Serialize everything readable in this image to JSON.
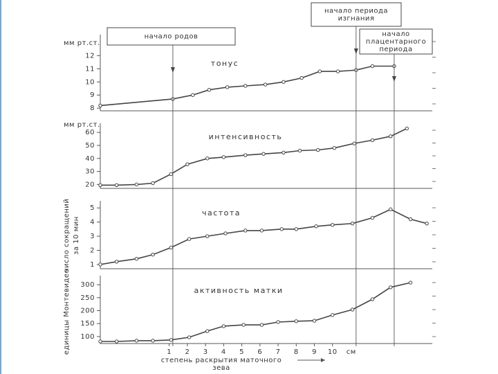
{
  "chart_data": [
    {
      "type": "line",
      "title": "тонус",
      "ylabel": [
        "мм рт.ст."
      ],
      "color": "#444444",
      "x": [
        -2.8,
        1.2,
        2.3,
        3.2,
        4.2,
        5.2,
        6.3,
        7.3,
        8.3,
        9.3,
        10.3,
        11.3,
        12.2,
        13.4
      ],
      "values": [
        8.2,
        8.7,
        9.0,
        9.4,
        9.6,
        9.7,
        9.8,
        10.0,
        10.3,
        10.8,
        10.8,
        10.9,
        11.2,
        11.2
      ],
      "xlim": [
        -2.8,
        15.5
      ],
      "ylim": [
        7.8,
        13.6
      ],
      "yticks": [
        8,
        9,
        10,
        11,
        12
      ]
    },
    {
      "type": "line",
      "title": "интенсивность",
      "ylabel": [
        "мм рт.ст."
      ],
      "color": "#444444",
      "x": [
        -2.8,
        -1.9,
        -0.8,
        0.1,
        1.1,
        2.0,
        3.1,
        4.0,
        5.2,
        6.2,
        7.3,
        8.2,
        9.2,
        10.1,
        11.2,
        12.2,
        13.2,
        14.1
      ],
      "values": [
        19.5,
        19.5,
        20,
        21,
        28,
        35.5,
        40,
        41,
        42.5,
        43.5,
        44.5,
        46,
        46.5,
        48,
        51.5,
        54,
        57,
        63
      ],
      "xlim": [
        -2.8,
        15.5
      ],
      "ylim": [
        17,
        67
      ],
      "yticks": [
        20,
        30,
        40,
        50,
        60
      ]
    },
    {
      "type": "line",
      "title": "частота",
      "ylabel": [
        "число сокращений",
        "за 10 мин"
      ],
      "color": "#444444",
      "x": [
        -2.8,
        -1.9,
        -0.8,
        0.1,
        1.1,
        2.1,
        3.1,
        4.1,
        5.2,
        6.1,
        7.2,
        8.0,
        9.1,
        10.0,
        11.1,
        12.2,
        13.2,
        14.3,
        15.2
      ],
      "values": [
        1.0,
        1.2,
        1.4,
        1.7,
        2.2,
        2.8,
        3.0,
        3.2,
        3.4,
        3.4,
        3.5,
        3.5,
        3.7,
        3.8,
        3.9,
        4.3,
        4.9,
        4.2,
        3.9
      ],
      "xlim": [
        -2.8,
        15.5
      ],
      "ylim": [
        0.7,
        5.5
      ],
      "yticks": [
        1,
        2,
        3,
        4,
        5
      ]
    },
    {
      "type": "line",
      "title": "активность матки",
      "ylabel": [
        "единицы Монтевидео"
      ],
      "color": "#444444",
      "x": [
        -2.8,
        -1.9,
        -0.8,
        0.1,
        1.1,
        2.1,
        3.1,
        4.0,
        5.1,
        6.1,
        7.0,
        8.0,
        9.0,
        10.0,
        11.1,
        12.2,
        13.2,
        14.3
      ],
      "values": [
        81,
        81,
        84,
        84,
        87,
        97,
        121,
        140,
        145,
        145,
        156,
        159,
        161,
        183,
        204,
        244,
        290,
        308
      ],
      "xlim": [
        -2.8,
        15.5
      ],
      "ylim": [
        73,
        335
      ],
      "yticks": [
        100,
        150,
        200,
        250,
        300
      ],
      "xticks": [
        1,
        2,
        3,
        4,
        5,
        6,
        7,
        8,
        9,
        10
      ],
      "x_unit": "см",
      "xlabel": [
        "степень раскрытия маточного",
        "зева"
      ]
    }
  ],
  "events": [
    {
      "label": [
        "начало родов"
      ],
      "x": 1.2
    },
    {
      "label": [
        "начало периода",
        "изгнания"
      ],
      "x": 11.3
    },
    {
      "label": [
        "начало",
        "плацентарного",
        "периода"
      ],
      "x": 13.4
    }
  ]
}
